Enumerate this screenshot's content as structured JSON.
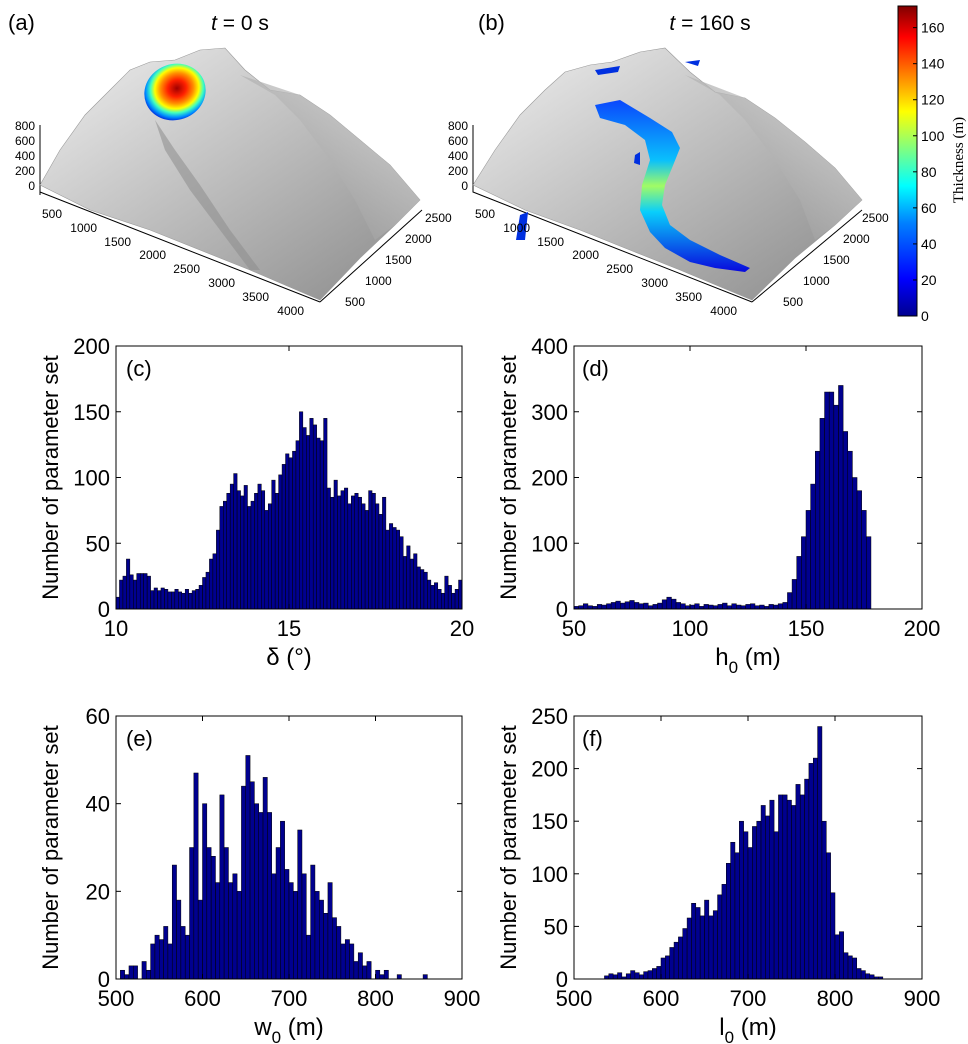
{
  "top_panels": {
    "a": {
      "label": "(a)",
      "time_var": "t",
      "time_rest": " = 0 s"
    },
    "b": {
      "label": "(b)",
      "time_var": "t",
      "time_rest": " = 160 s"
    },
    "z_ticks": [
      "800",
      "600",
      "400",
      "200",
      "0"
    ],
    "x_ticks": [
      "500",
      "1000",
      "1500",
      "2000",
      "2500",
      "3000",
      "3500",
      "4000"
    ],
    "y_ticks_a": [
      "2500",
      "2000",
      "1500",
      "1000",
      "500"
    ],
    "y_ticks_b": [
      "2500",
      "2000",
      "1500",
      "1000",
      "500"
    ]
  },
  "colorbar": {
    "label": "Thickness (m)",
    "ticks": [
      "160",
      "140",
      "120",
      "100",
      "80",
      "60",
      "40",
      "20",
      "0"
    ],
    "range": [
      0,
      172
    ],
    "colors": [
      "#00008f",
      "#0000ff",
      "#0080ff",
      "#00ffff",
      "#80ff80",
      "#ffff00",
      "#ff8000",
      "#ff0000",
      "#800000"
    ]
  },
  "chart_data": [
    {
      "type": "bar",
      "panel_label": "(c)",
      "xlabel": "δ (°)",
      "ylabel": "Number of parameter set",
      "xlim": [
        10,
        20
      ],
      "ylim": [
        0,
        200
      ],
      "xticks": [
        10,
        15,
        20
      ],
      "yticks": [
        0,
        50,
        100,
        150,
        200
      ],
      "bin_start": 10,
      "bin_width": 0.1,
      "values": [
        9,
        22,
        25,
        38,
        26,
        22,
        27,
        27,
        27,
        25,
        14,
        16,
        14,
        16,
        15,
        13,
        13,
        15,
        13,
        12,
        15,
        12,
        14,
        15,
        18,
        24,
        28,
        38,
        42,
        60,
        78,
        82,
        88,
        95,
        103,
        90,
        86,
        94,
        78,
        82,
        88,
        95,
        90,
        75,
        80,
        98,
        88,
        102,
        110,
        118,
        115,
        120,
        128,
        150,
        138,
        132,
        145,
        140,
        130,
        128,
        145,
        92,
        85,
        98,
        86,
        90,
        92,
        80,
        86,
        88,
        85,
        80,
        75,
        90,
        88,
        80,
        72,
        85,
        60,
        65,
        62,
        60,
        55,
        40,
        48,
        38,
        42,
        32,
        30,
        28,
        22,
        18,
        20,
        15,
        12,
        25,
        18,
        12,
        15,
        22
      ]
    },
    {
      "type": "bar",
      "panel_label": "(d)",
      "xlabel": "h",
      "xlabel_sub": "0",
      "xlabel_unit": " (m)",
      "ylabel": "Number of parameter set",
      "xlim": [
        50,
        200
      ],
      "ylim": [
        0,
        400
      ],
      "xticks": [
        50,
        100,
        150,
        200
      ],
      "yticks": [
        0,
        100,
        200,
        300,
        400
      ],
      "bin_start": 50,
      "bin_width": 2,
      "values": [
        4,
        5,
        8,
        5,
        4,
        7,
        6,
        8,
        10,
        12,
        9,
        11,
        13,
        10,
        8,
        9,
        5,
        7,
        9,
        14,
        18,
        15,
        10,
        8,
        5,
        6,
        8,
        4,
        7,
        6,
        5,
        7,
        9,
        5,
        8,
        6,
        5,
        7,
        8,
        5,
        6,
        4,
        7,
        6,
        8,
        10,
        25,
        45,
        80,
        110,
        150,
        190,
        240,
        290,
        330,
        330,
        310,
        340,
        270,
        240,
        200,
        180,
        150,
        110
      ]
    },
    {
      "type": "bar",
      "panel_label": "(e)",
      "xlabel": "w",
      "xlabel_sub": "0",
      "xlabel_unit": " (m)",
      "ylabel": "Number of parameter set",
      "xlim": [
        500,
        900
      ],
      "ylim": [
        0,
        60
      ],
      "xticks": [
        500,
        600,
        700,
        800,
        900
      ],
      "yticks": [
        0,
        20,
        40,
        60
      ],
      "bin_start": 505,
      "bin_width": 5,
      "values": [
        2,
        1,
        3,
        3,
        0,
        4,
        2,
        8,
        10,
        9,
        12,
        8,
        26,
        18,
        12,
        10,
        30,
        47,
        18,
        40,
        30,
        28,
        22,
        42,
        30,
        22,
        24,
        20,
        44,
        51,
        45,
        40,
        38,
        46,
        38,
        24,
        30,
        36,
        25,
        22,
        20,
        34,
        24,
        10,
        26,
        20,
        18,
        15,
        22,
        14,
        12,
        8,
        9,
        8,
        4,
        6,
        3,
        4,
        0,
        2,
        1,
        2,
        0,
        0,
        1,
        0,
        0,
        0,
        0,
        0,
        1,
        0,
        0,
        0,
        0
      ]
    },
    {
      "type": "bar",
      "panel_label": "(f)",
      "xlabel": "l",
      "xlabel_sub": "0",
      "xlabel_unit": " (m)",
      "ylabel": "Number of parameter set",
      "xlim": [
        500,
        900
      ],
      "ylim": [
        0,
        250
      ],
      "xticks": [
        500,
        600,
        700,
        800,
        900
      ],
      "yticks": [
        0,
        50,
        100,
        150,
        200,
        250
      ],
      "bin_start": 535,
      "bin_width": 5,
      "values": [
        3,
        5,
        4,
        6,
        2,
        5,
        8,
        6,
        4,
        7,
        8,
        10,
        12,
        20,
        22,
        30,
        35,
        40,
        48,
        58,
        72,
        68,
        60,
        75,
        60,
        65,
        80,
        90,
        110,
        130,
        120,
        150,
        140,
        125,
        145,
        150,
        165,
        155,
        170,
        140,
        175,
        175,
        170,
        165,
        185,
        175,
        190,
        205,
        210,
        240,
        150,
        120,
        82,
        42,
        45,
        25,
        22,
        20,
        10,
        8,
        5,
        4,
        2,
        2,
        0,
        0,
        0,
        0,
        0,
        0,
        0,
        0,
        0
      ]
    }
  ]
}
